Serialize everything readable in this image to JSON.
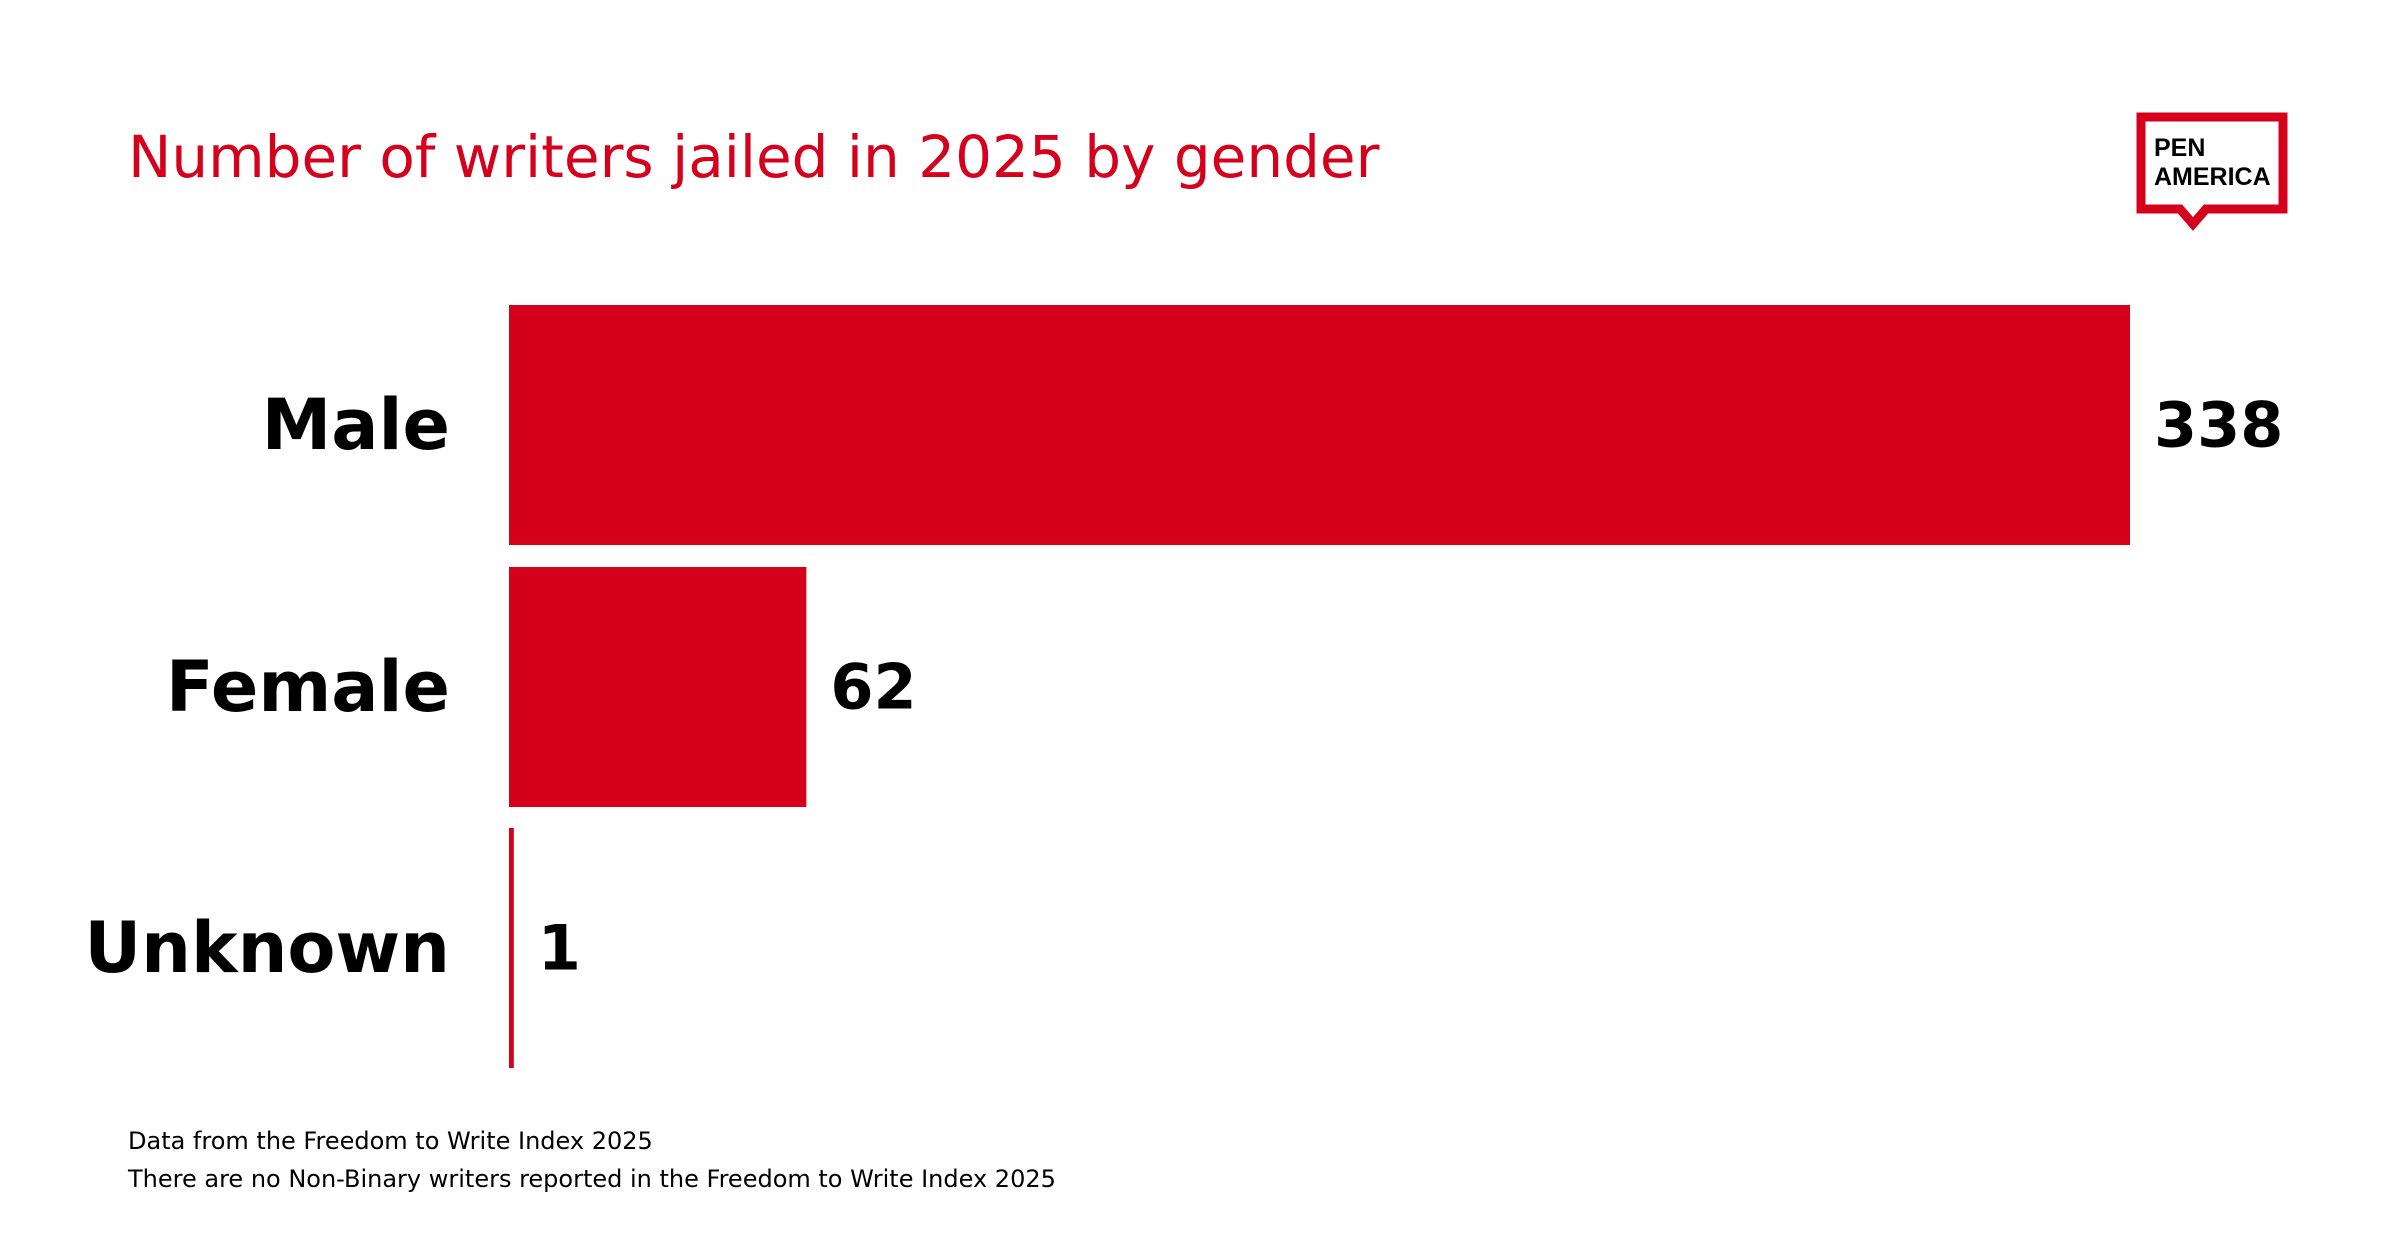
{
  "chart_data": {
    "type": "bar",
    "orientation": "horizontal",
    "title": "Number of writers jailed in 2025 by gender",
    "categories": [
      "Male",
      "Female",
      "Unknown"
    ],
    "values": [
      338,
      62,
      1
    ],
    "value_labels": [
      "338",
      "62",
      "1"
    ],
    "xlabel": "",
    "ylabel": "",
    "xlim": [
      0,
      338
    ],
    "grid": false,
    "legend": "none"
  },
  "logo": {
    "line1": "PEN",
    "line2": "AMERICA"
  },
  "notes": [
    "Data from the Freedom to Write Index 2025",
    "There are no Non-Binary writers reported in the Freedom to Write Index 2025"
  ],
  "colors": {
    "accent": "#d5001c",
    "text": "#000000",
    "background": "#ffffff"
  }
}
